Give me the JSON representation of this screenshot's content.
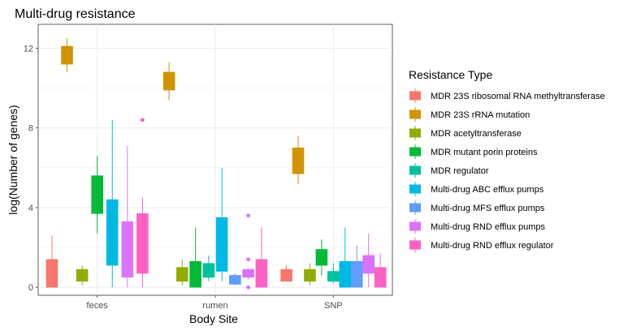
{
  "chart_data": {
    "type": "boxplot",
    "title": "Multi-drug resistance",
    "xlabel": "Body Site",
    "ylabel": "log(Number of genes)",
    "ylim": [
      -0.4,
      13.2
    ],
    "yticks": [
      0,
      4,
      8,
      12
    ],
    "grid": true,
    "legend_position": "right",
    "legend_title": "Resistance Type",
    "categories": [
      "feces",
      "rumen",
      "SNP"
    ],
    "series": [
      {
        "name": "MDR 23S ribosomal RNA methyltransferase",
        "color": "#F8766D",
        "boxes": [
          {
            "category": "feces",
            "min": 0,
            "q1": 0,
            "median": 0,
            "q3": 1.4,
            "max": 2.6,
            "outliers": []
          },
          {
            "category": "rumen",
            "min": null,
            "q1": null,
            "median": null,
            "q3": null,
            "max": null,
            "outliers": []
          },
          {
            "category": "SNP",
            "min": 0.3,
            "q1": 0.3,
            "median": 0.3,
            "q3": 0.9,
            "max": 1.1,
            "outliers": []
          }
        ]
      },
      {
        "name": "MDR 23S rRNA mutation",
        "color": "#D39200",
        "boxes": [
          {
            "category": "feces",
            "min": 10.8,
            "q1": 11.2,
            "median": 11.4,
            "q3": 12.1,
            "max": 12.5,
            "outliers": []
          },
          {
            "category": "rumen",
            "min": 9.4,
            "q1": 9.9,
            "median": 10.1,
            "q3": 10.8,
            "max": 11.3,
            "outliers": []
          },
          {
            "category": "SNP",
            "min": 5.2,
            "q1": 5.7,
            "median": 5.8,
            "q3": 7.0,
            "max": 7.6,
            "outliers": []
          }
        ]
      },
      {
        "name": "MDR acetyltransferase",
        "color": "#93AA00",
        "boxes": [
          {
            "category": "feces",
            "min": 0.1,
            "q1": 0.3,
            "median": 0.4,
            "q3": 0.9,
            "max": 1.1,
            "outliers": []
          },
          {
            "category": "rumen",
            "min": 0.1,
            "q1": 0.3,
            "median": 0.6,
            "q3": 1.0,
            "max": 1.4,
            "outliers": []
          },
          {
            "category": "SNP",
            "min": 0.1,
            "q1": 0.3,
            "median": 0.5,
            "q3": 0.9,
            "max": 1.2,
            "outliers": []
          }
        ]
      },
      {
        "name": "MDR mutant porin proteins",
        "color": "#00BA38",
        "boxes": [
          {
            "category": "feces",
            "min": 2.7,
            "q1": 3.7,
            "median": 4.3,
            "q3": 5.6,
            "max": 6.6,
            "outliers": []
          },
          {
            "category": "rumen",
            "min": 0,
            "q1": 0,
            "median": 0.6,
            "q3": 1.3,
            "max": 3.0,
            "outliers": []
          },
          {
            "category": "SNP",
            "min": 0.6,
            "q1": 1.1,
            "median": 1.3,
            "q3": 1.9,
            "max": 2.4,
            "outliers": []
          }
        ]
      },
      {
        "name": "MDR regulator",
        "color": "#00C19F",
        "boxes": [
          {
            "category": "feces",
            "min": null,
            "q1": null,
            "median": null,
            "q3": null,
            "max": null,
            "outliers": []
          },
          {
            "category": "rumen",
            "min": 0.3,
            "q1": 0.5,
            "median": 0.8,
            "q3": 1.2,
            "max": 1.6,
            "outliers": []
          },
          {
            "category": "SNP",
            "min": 0.2,
            "q1": 0.3,
            "median": 0.5,
            "q3": 0.8,
            "max": 1.2,
            "outliers": []
          }
        ]
      },
      {
        "name": "Multi-drug ABC efflux pumps",
        "color": "#00B9E3",
        "boxes": [
          {
            "category": "feces",
            "min": 0,
            "q1": 1.1,
            "median": 2.6,
            "q3": 4.4,
            "max": 8.4,
            "outliers": []
          },
          {
            "category": "rumen",
            "min": 0.3,
            "q1": 0.8,
            "median": 1.7,
            "q3": 3.5,
            "max": 6.0,
            "outliers": []
          },
          {
            "category": "SNP",
            "min": 0,
            "q1": 0,
            "median": 0.4,
            "q3": 1.3,
            "max": 3.0,
            "outliers": []
          }
        ]
      },
      {
        "name": "Multi-drug MFS efflux pumps",
        "color": "#619CFF",
        "boxes": [
          {
            "category": "feces",
            "min": null,
            "q1": null,
            "median": null,
            "q3": null,
            "max": null,
            "outliers": []
          },
          {
            "category": "rumen",
            "min": 0.1,
            "q1": 0.15,
            "median": 0.3,
            "q3": 0.6,
            "max": 0.7,
            "outliers": []
          },
          {
            "category": "SNP",
            "min": 0,
            "q1": 0,
            "median": 0.6,
            "q3": 1.3,
            "max": 2.1,
            "outliers": []
          }
        ]
      },
      {
        "name": "Multi-drug RND efflux pumps",
        "color": "#DB72FB",
        "boxes": [
          {
            "category": "feces",
            "min": 0,
            "q1": 0.5,
            "median": 2.0,
            "q3": 3.3,
            "max": 7.1,
            "outliers": []
          },
          {
            "category": "rumen",
            "min": 0.4,
            "q1": 0.5,
            "median": 0.6,
            "q3": 0.9,
            "max": 0.9,
            "outliers": [
              0,
              1.4,
              3.6
            ]
          },
          {
            "category": "SNP",
            "min": 0,
            "q1": 0.7,
            "median": 1.0,
            "q3": 1.6,
            "max": 2.7,
            "outliers": []
          }
        ]
      },
      {
        "name": "Multi-drug RND efflux regulator",
        "color": "#FF61C3",
        "boxes": [
          {
            "category": "feces",
            "min": 0,
            "q1": 0.7,
            "median": 2.3,
            "q3": 3.7,
            "max": 4.5,
            "outliers": [
              8.4
            ]
          },
          {
            "category": "rumen",
            "min": 0,
            "q1": 0,
            "median": 0.5,
            "q3": 1.4,
            "max": 3.0,
            "outliers": []
          },
          {
            "category": "SNP",
            "min": 0,
            "q1": 0,
            "median": 0.3,
            "q3": 1.0,
            "max": 1.7,
            "outliers": []
          }
        ]
      }
    ]
  }
}
